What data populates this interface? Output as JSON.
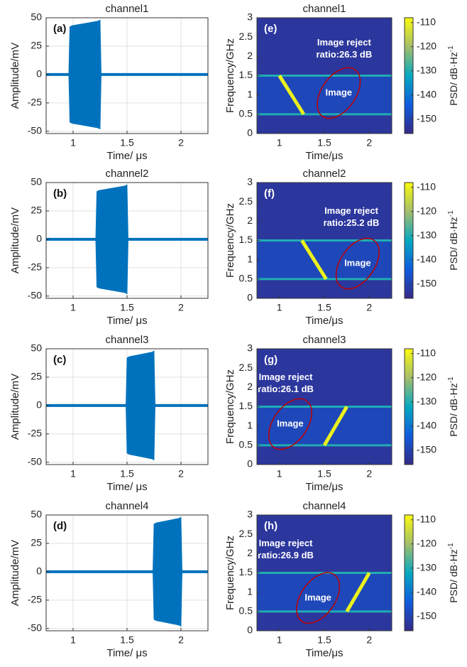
{
  "chart_data": [
    {
      "type": "waveform",
      "panel": "(a)",
      "title": "channel1",
      "ylabel": "Amplitude/mV",
      "xlabel": "Time/ μs",
      "color": "#0072bd",
      "grid": true,
      "x": [
        0.75,
        0.96,
        0.97,
        0.99,
        1.23,
        1.25,
        1.26,
        2.25
      ],
      "high": [
        1,
        1,
        42,
        43,
        47,
        48,
        1,
        1
      ],
      "low": [
        -1,
        -1,
        -42,
        -43,
        -47,
        -48,
        -1,
        -1
      ],
      "xlim": [
        0.75,
        2.25
      ],
      "xticks": [
        1,
        1.5,
        2
      ],
      "ylim": [
        -52,
        50
      ],
      "yticks": [
        50,
        25,
        0,
        -25,
        -50
      ]
    },
    {
      "type": "waveform",
      "panel": "(b)",
      "title": "channel2",
      "ylabel": "Amplitude/mV",
      "xlabel": "Time/ μs",
      "color": "#0072bd",
      "grid": true,
      "x": [
        0.75,
        1.21,
        1.22,
        1.24,
        1.48,
        1.5,
        1.51,
        2.25
      ],
      "high": [
        1,
        1,
        42,
        43,
        47,
        48,
        1,
        1
      ],
      "low": [
        -1,
        -1,
        -42,
        -43,
        -47,
        -48,
        -1,
        -1
      ],
      "xlim": [
        0.75,
        2.25
      ],
      "xticks": [
        1,
        1.5,
        2
      ],
      "ylim": [
        -52,
        50
      ],
      "yticks": [
        50,
        25,
        0,
        -25,
        -50
      ]
    },
    {
      "type": "waveform",
      "panel": "(c)",
      "title": "channel3",
      "ylabel": "Amplitude/mV",
      "xlabel": "Time/ μs",
      "color": "#0072bd",
      "grid": true,
      "x": [
        0.75,
        1.49,
        1.5,
        1.52,
        1.73,
        1.75,
        1.76,
        2.25
      ],
      "high": [
        1,
        1,
        42,
        43,
        47,
        48,
        1,
        1
      ],
      "low": [
        -1,
        -1,
        -42,
        -43,
        -47,
        -48,
        -1,
        -1
      ],
      "xlim": [
        0.75,
        2.25
      ],
      "xticks": [
        1,
        1.5,
        2
      ],
      "ylim": [
        -52,
        50
      ],
      "yticks": [
        50,
        25,
        0,
        -25,
        -50
      ]
    },
    {
      "type": "waveform",
      "panel": "(d)",
      "title": "channel4",
      "ylabel": "Amplitude/mV",
      "xlabel": "Time/ μs",
      "color": "#0072bd",
      "grid": true,
      "x": [
        0.75,
        1.74,
        1.75,
        1.77,
        1.98,
        2.0,
        2.01,
        2.25
      ],
      "high": [
        1,
        1,
        42,
        43,
        47,
        48,
        1,
        1
      ],
      "low": [
        -1,
        -1,
        -42,
        -43,
        -47,
        -48,
        -1,
        -1
      ],
      "xlim": [
        0.75,
        2.25
      ],
      "xticks": [
        1,
        1.5,
        2
      ],
      "ylim": [
        -52,
        50
      ],
      "yticks": [
        50,
        25,
        0,
        -25,
        -50
      ]
    },
    {
      "type": "spectrogram",
      "panel": "(e)",
      "title": "channel1",
      "ylabel": "Frequency/GHz",
      "xlabel": "Time/μs",
      "chirp_x": [
        1.0,
        1.27
      ],
      "chirp_y": [
        1.5,
        0.5
      ],
      "tone_y": [
        0.5,
        1.5
      ],
      "noise_level": -153,
      "band_level": -148,
      "tone_level": -130,
      "chirp_level": -110,
      "annotation": [
        "Image reject",
        "ratio:26.3 dB"
      ],
      "annotation_x": 1.72,
      "annotation_y": 2.35,
      "image_label": "Image",
      "image_x": 1.66,
      "image_y": 1.05,
      "xlim": [
        0.75,
        2.25
      ],
      "xticks": [
        1,
        1.5,
        2
      ],
      "ylim": [
        0,
        3
      ],
      "yticks": [
        0,
        0.5,
        1,
        1.5,
        2,
        2.5,
        3
      ],
      "clim": [
        -156,
        -108
      ],
      "cticks": [
        -110,
        -120,
        -130,
        -140,
        -150
      ],
      "colorbar_label": "PSD/ dB·Hz",
      "colorbar_label_sup": "-1"
    },
    {
      "type": "spectrogram",
      "panel": "(f)",
      "title": "channel2",
      "ylabel": "Frequency/GHz",
      "xlabel": "Time/μs",
      "chirp_x": [
        1.25,
        1.52
      ],
      "chirp_y": [
        1.5,
        0.5
      ],
      "tone_y": [
        0.5,
        1.5
      ],
      "noise_level": -153,
      "band_level": -148,
      "tone_level": -130,
      "chirp_level": -110,
      "annotation": [
        "Image reject",
        "ratio:25.2 dB"
      ],
      "annotation_x": 1.8,
      "annotation_y": 2.25,
      "image_label": "Image",
      "image_x": 1.87,
      "image_y": 0.9,
      "xlim": [
        0.75,
        2.25
      ],
      "xticks": [
        1,
        1.5,
        2
      ],
      "ylim": [
        0,
        3
      ],
      "yticks": [
        0,
        0.5,
        1,
        1.5,
        2,
        2.5,
        3
      ],
      "clim": [
        -156,
        -108
      ],
      "cticks": [
        -110,
        -120,
        -130,
        -140,
        -150
      ],
      "colorbar_label": "PSD/ dB·Hz",
      "colorbar_label_sup": "-1"
    },
    {
      "type": "spectrogram",
      "panel": "(g)",
      "title": "channel3",
      "ylabel": "Frequency/GHz",
      "xlabel": "Time/μs",
      "chirp_x": [
        1.5,
        1.75
      ],
      "chirp_y": [
        0.5,
        1.5
      ],
      "tone_y": [
        0.5,
        1.5
      ],
      "noise_level": -153,
      "band_level": -148,
      "tone_level": -130,
      "chirp_level": -110,
      "annotation": [
        "Image reject",
        "ratio:26.1 dB"
      ],
      "annotation_x": 1.07,
      "annotation_y": 2.25,
      "image_label": "Image",
      "image_x": 1.12,
      "image_y": 1.05,
      "xlim": [
        0.75,
        2.25
      ],
      "xticks": [
        1,
        1.5,
        2
      ],
      "ylim": [
        0,
        3
      ],
      "yticks": [
        0,
        0.5,
        1,
        1.5,
        2,
        2.5,
        3
      ],
      "clim": [
        -156,
        -108
      ],
      "cticks": [
        -110,
        -120,
        -130,
        -140,
        -150
      ],
      "colorbar_label": "PSD/ dB·Hz",
      "colorbar_label_sup": "-1"
    },
    {
      "type": "spectrogram",
      "panel": "(h)",
      "title": "channel4",
      "ylabel": "Frequency/GHz",
      "xlabel": "Time/μs",
      "chirp_x": [
        1.75,
        2.0
      ],
      "chirp_y": [
        0.5,
        1.5
      ],
      "tone_y": [
        0.5,
        1.5
      ],
      "noise_level": -153,
      "band_level": -148,
      "tone_level": -130,
      "chirp_level": -110,
      "annotation": [
        "Image reject",
        "ratio:26.9 dB"
      ],
      "annotation_x": 1.07,
      "annotation_y": 2.25,
      "image_label": "Image",
      "image_x": 1.43,
      "image_y": 0.85,
      "xlim": [
        0.75,
        2.25
      ],
      "xticks": [
        1,
        1.5,
        2
      ],
      "ylim": [
        0,
        3
      ],
      "yticks": [
        0,
        0.5,
        1,
        1.5,
        2,
        2.5,
        3
      ],
      "clim": [
        -156,
        -108
      ],
      "cticks": [
        -110,
        -120,
        -130,
        -140,
        -150
      ],
      "colorbar_label": "PSD/ dB·Hz",
      "colorbar_label_sup": "-1"
    }
  ]
}
